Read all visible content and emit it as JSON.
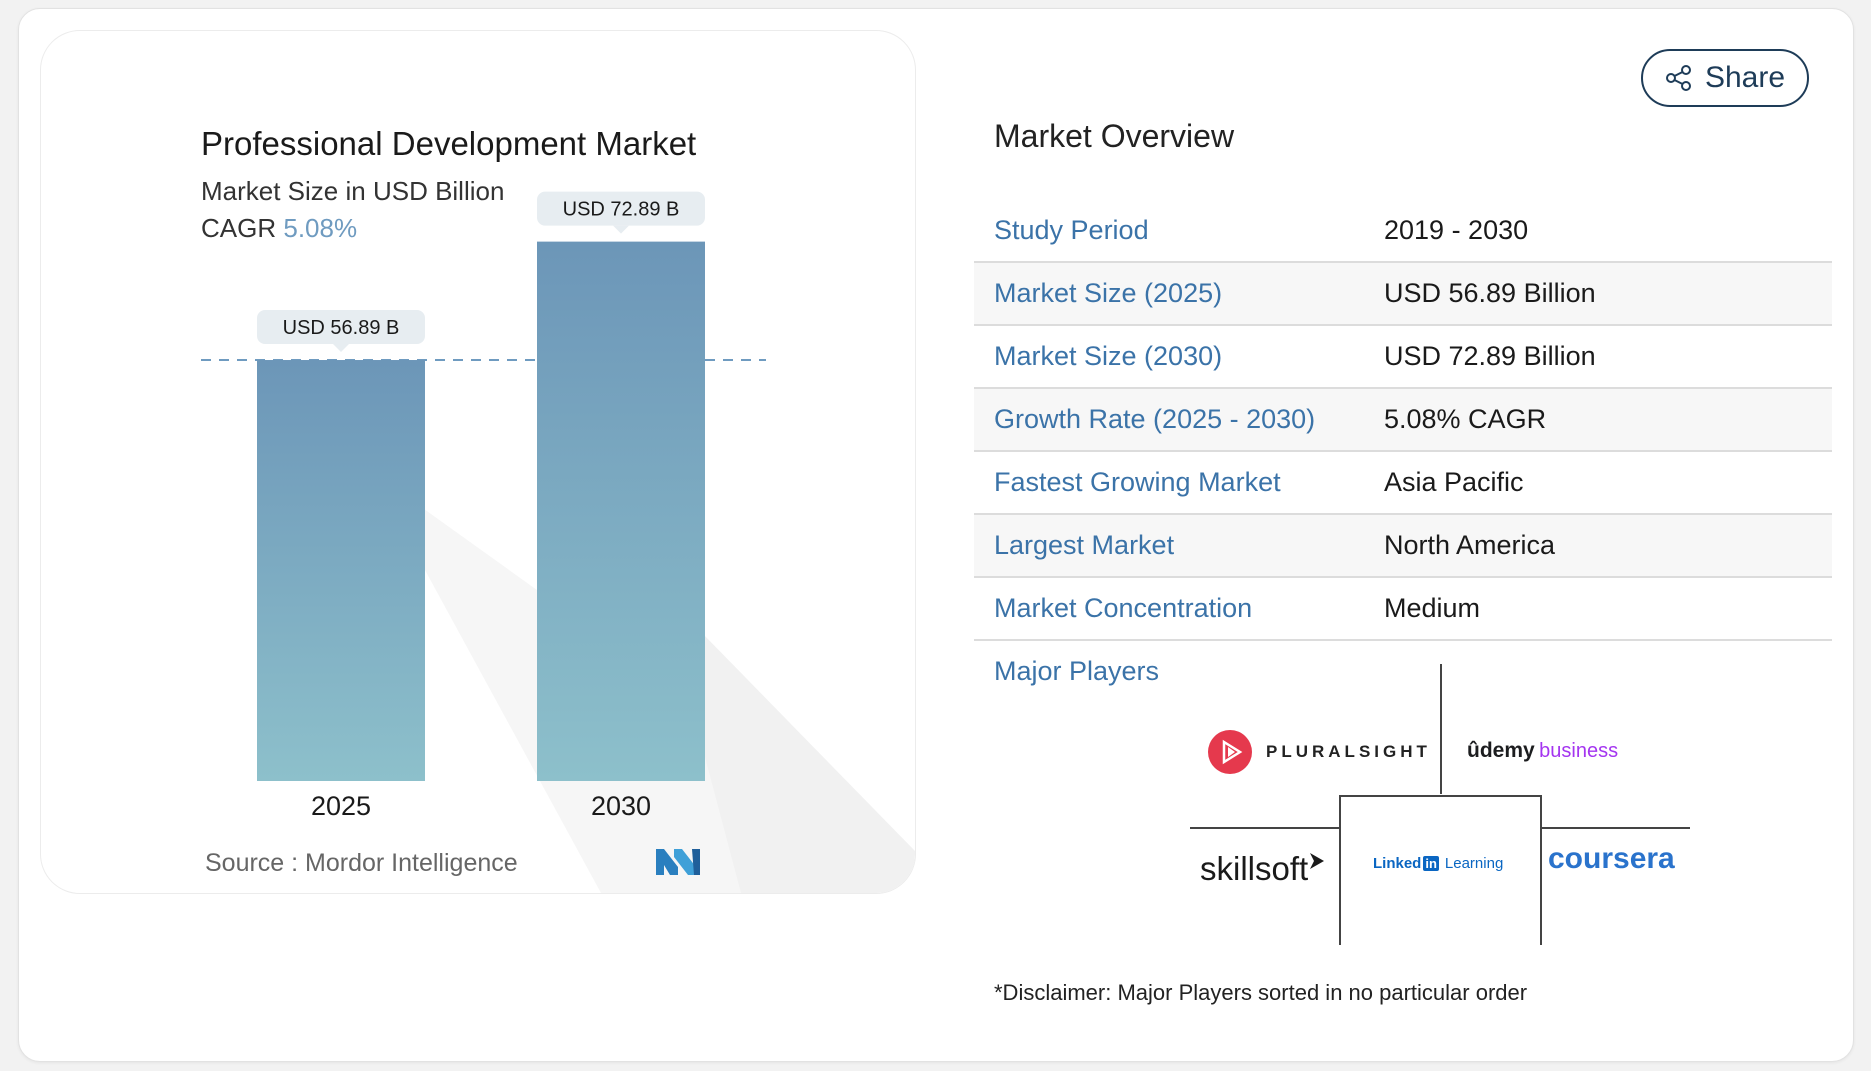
{
  "chart_card": {
    "title": "Professional Development Market",
    "subtitle": "Market Size in USD Billion",
    "cagr_label": "CAGR",
    "cagr_value": "5.08%",
    "source": "Source :  Mordor Intelligence"
  },
  "chart_data": {
    "type": "bar",
    "categories": [
      "2025",
      "2030"
    ],
    "values": [
      56.89,
      72.89
    ],
    "data_labels": [
      "USD 56.89 B",
      "USD 72.89 B"
    ],
    "title": "Professional Development Market",
    "subtitle": "Market Size in USD Billion",
    "xlabel": "",
    "ylabel": "",
    "ylim": [
      0,
      80
    ],
    "bar_color_top": "#6c96b8",
    "bar_color_bottom": "#8dc0cb",
    "reference_line_value": 56.89
  },
  "share_button": {
    "label": "Share"
  },
  "overview": {
    "title": "Market Overview",
    "rows": [
      {
        "key": "Study Period",
        "value": "2019 - 2030"
      },
      {
        "key": "Market Size (2025)",
        "value": "USD 56.89 Billion"
      },
      {
        "key": "Market Size (2030)",
        "value": "USD 72.89 Billion"
      },
      {
        "key": "Growth Rate (2025 - 2030)",
        "value": "5.08% CAGR"
      },
      {
        "key": "Fastest Growing Market",
        "value": "Asia Pacific"
      },
      {
        "key": "Largest Market",
        "value": "North America"
      },
      {
        "key": "Market Concentration",
        "value": "Medium"
      }
    ]
  },
  "players": {
    "title": "Major Players",
    "pluralsight": "PLURALSIGHT",
    "udemy": "ûdemy",
    "udemy_suffix": "business",
    "skillsoft": "skillsoft",
    "linkedin_a": "Linked",
    "linkedin_in": "in",
    "linkedin_b": "Learning",
    "coursera": "coursera"
  },
  "disclaimer": "*Disclaimer: Major Players sorted in no particular order",
  "colors": {
    "accent_blue": "#3b73a8",
    "navy": "#1e3c58",
    "pluralsight_red": "#e5394d",
    "udemy_purple": "#a435f0",
    "coursera_blue": "#2a73cc",
    "linkedin_blue": "#0a66c2"
  }
}
